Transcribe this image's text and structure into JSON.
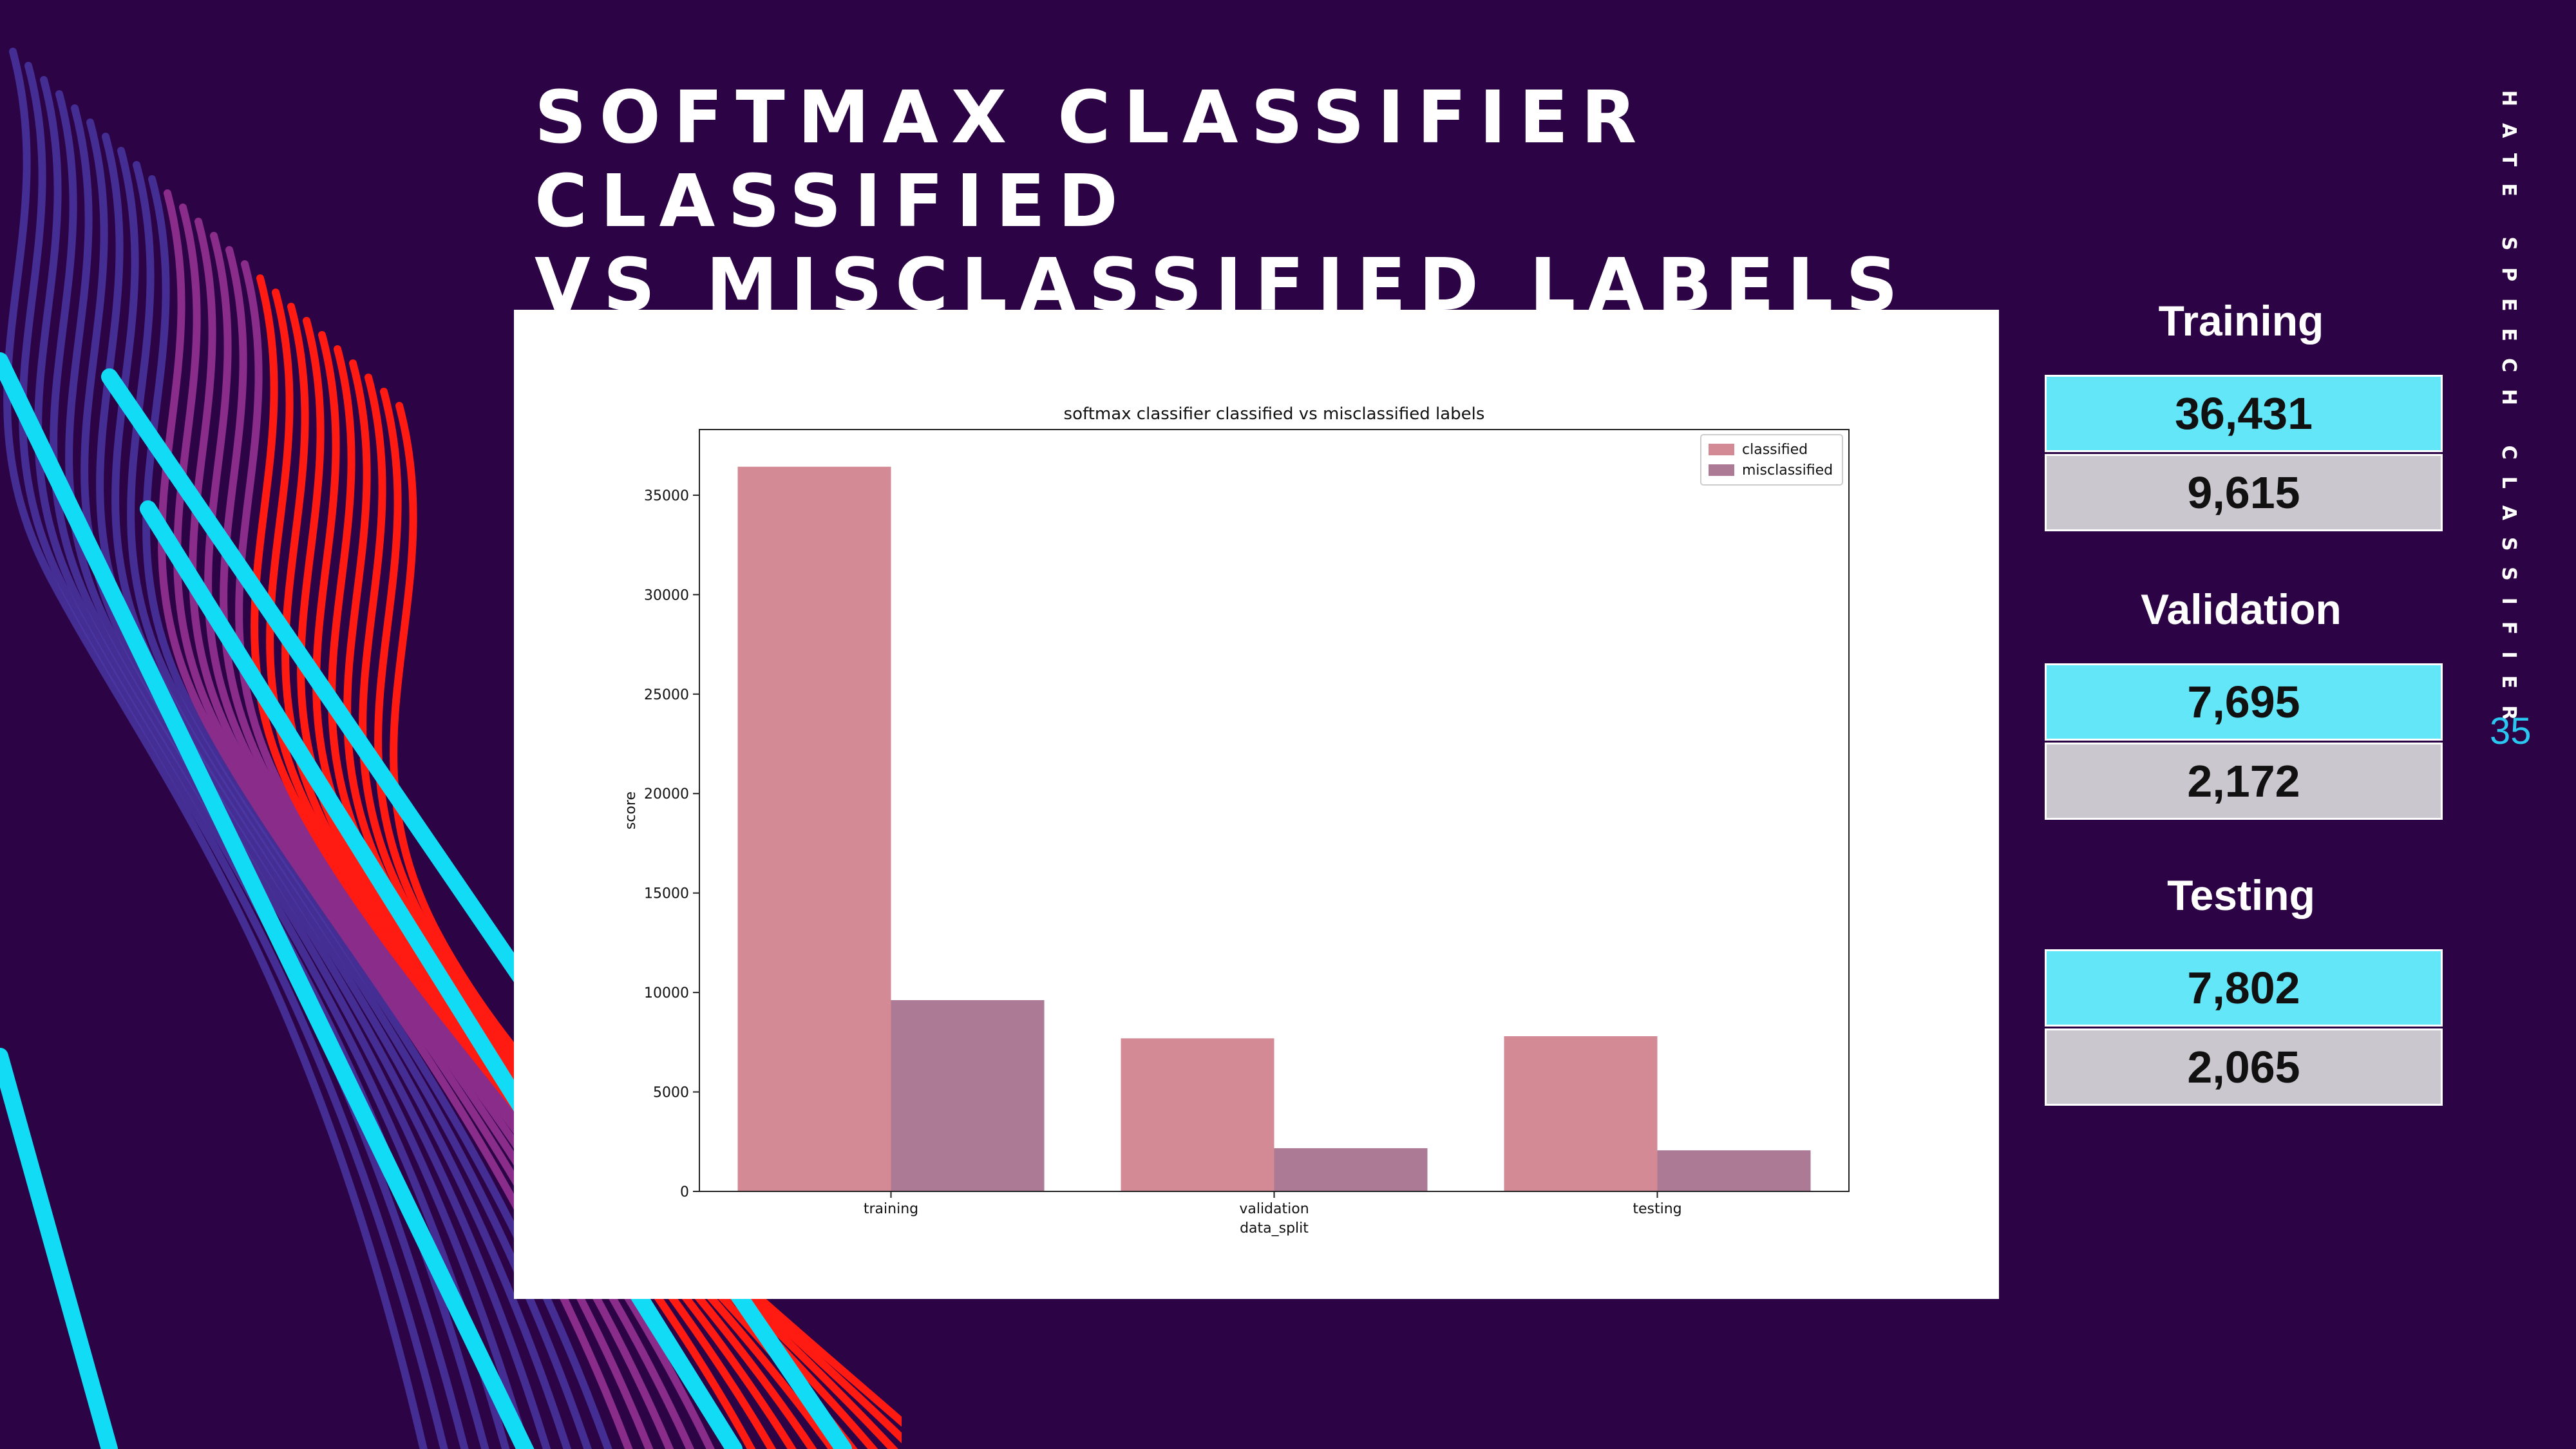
{
  "slide": {
    "title_lines": [
      "SOFTMAX CLASSIFIER CLASSIFIED",
      "VS MISCLASSIFIED LABELS"
    ],
    "side_label": "HATE SPEECH CLASSIFIER",
    "page_number": "35"
  },
  "stats": [
    {
      "label": "Training",
      "classified": "36,431",
      "misclassified": "9,615"
    },
    {
      "label": "Validation",
      "classified": "7,695",
      "misclassified": "2,172"
    },
    {
      "label": "Testing",
      "classified": "7,802",
      "misclassified": "2,065"
    }
  ],
  "colors": {
    "background": "#2c0345",
    "classified": "#d38a94",
    "misclassified": "#ad7a96",
    "stat_primary": "#63e6f8",
    "stat_secondary": "#cbc7cf",
    "accent_cyan": "#12dcf5",
    "accent_red": "#ff1a12"
  },
  "chart_data": {
    "type": "bar",
    "title": "softmax classifier classified vs misclassified labels",
    "xlabel": "data_split",
    "ylabel": "score",
    "categories": [
      "training",
      "validation",
      "testing"
    ],
    "series": [
      {
        "name": "classified",
        "values": [
          36431,
          7695,
          7802
        ]
      },
      {
        "name": "misclassified",
        "values": [
          9615,
          2172,
          2065
        ]
      }
    ],
    "yticks": [
      0,
      5000,
      10000,
      15000,
      20000,
      25000,
      30000,
      35000
    ],
    "ylim": [
      0,
      38300
    ],
    "legend": "top-right",
    "grid": false
  }
}
